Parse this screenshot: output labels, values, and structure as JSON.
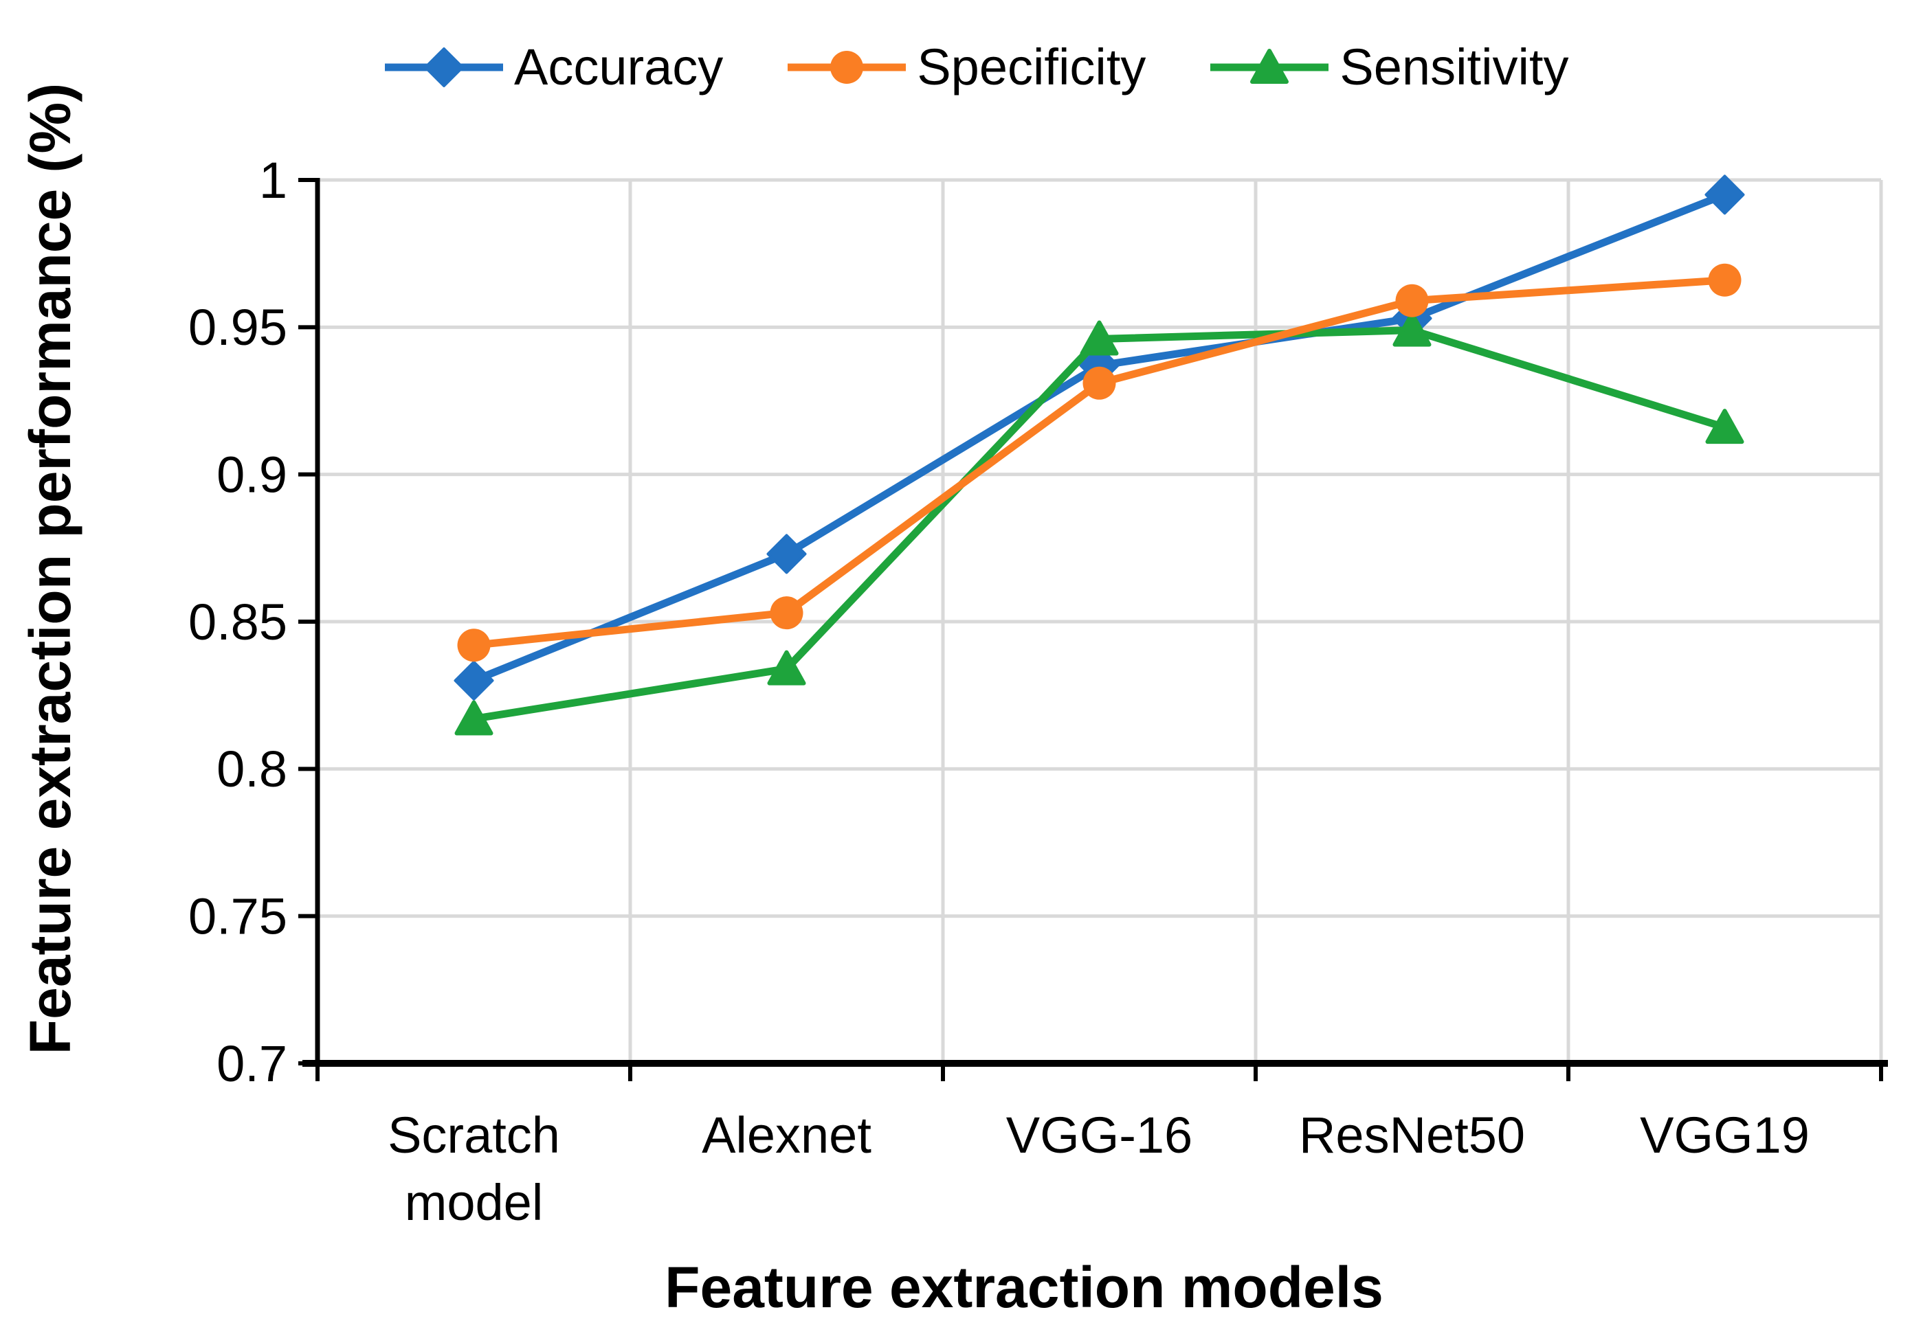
{
  "chart_data": {
    "type": "line",
    "title": "",
    "categories": [
      "Scratch model",
      "Alexnet",
      "VGG-16",
      "ResNet50",
      "VGG19"
    ],
    "series": [
      {
        "name": "Accuracy",
        "marker": "diamond",
        "color": "#2272C4",
        "values": [
          0.83,
          0.873,
          0.937,
          0.953,
          0.995
        ]
      },
      {
        "name": "Specificity",
        "marker": "circle",
        "color": "#FA7E23",
        "values": [
          0.842,
          0.853,
          0.931,
          0.959,
          0.966
        ]
      },
      {
        "name": "Sensitivity",
        "marker": "triangle",
        "color": "#1EA43C",
        "values": [
          0.817,
          0.834,
          0.946,
          0.949,
          0.916
        ]
      }
    ],
    "xlabel": "Feature extraction models",
    "ylabel": "Feature extraction performance (%)",
    "ylim": [
      0.7,
      1.0
    ],
    "ytick_values": [
      0.7,
      0.75,
      0.8,
      0.85,
      0.9,
      0.95,
      1.0
    ],
    "ytick_labels": [
      "0.7",
      "0.75",
      "0.8",
      "0.85",
      "0.9",
      "0.95",
      "1"
    ],
    "grid": true,
    "legend_position": "top",
    "colors": {
      "gridline": "#D9D9D9",
      "axis": "#000000",
      "background": "#FFFFFF",
      "text": "#000000"
    }
  }
}
